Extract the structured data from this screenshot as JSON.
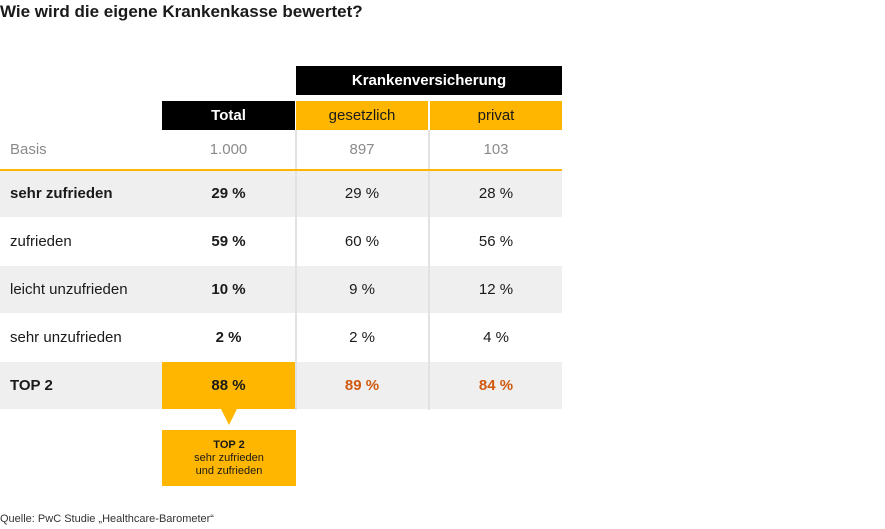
{
  "title": "Wie wird die eigene Krankenkasse bewertet?",
  "header": {
    "group": "Krankenversicherung",
    "total": "Total",
    "gesetzlich": "gesetzlich",
    "privat": "privat"
  },
  "chart_data": {
    "type": "table",
    "title": "Wie wird die eigene Krankenkasse bewertet?",
    "columns": [
      "Total",
      "gesetzlich",
      "privat"
    ],
    "column_group": "Krankenversicherung",
    "basis": {
      "label": "Basis",
      "values": [
        "1.000",
        "897",
        "103"
      ]
    },
    "rows": [
      {
        "label": "sehr zufrieden",
        "values": [
          "29 %",
          "29 %",
          "28 %"
        ]
      },
      {
        "label": "zufrieden",
        "values": [
          "59 %",
          "60 %",
          "56 %"
        ]
      },
      {
        "label": "leicht unzufrieden",
        "values": [
          "10 %",
          "9 %",
          "12 %"
        ]
      },
      {
        "label": "sehr unzufrieden",
        "values": [
          "2 %",
          "2 %",
          "4 %"
        ]
      },
      {
        "label": "TOP 2",
        "values": [
          "88 %",
          "89 %",
          "84 %"
        ]
      }
    ]
  },
  "callout": {
    "title": "TOP 2",
    "line1": "sehr zufrieden",
    "line2": "und zufrieden"
  },
  "source": "Quelle: PwC Studie „Healthcare-Barometer“",
  "colors": {
    "orange": "#ffb600",
    "accent": "#d0590f",
    "black": "#000000",
    "row_shade": "#efefef"
  }
}
